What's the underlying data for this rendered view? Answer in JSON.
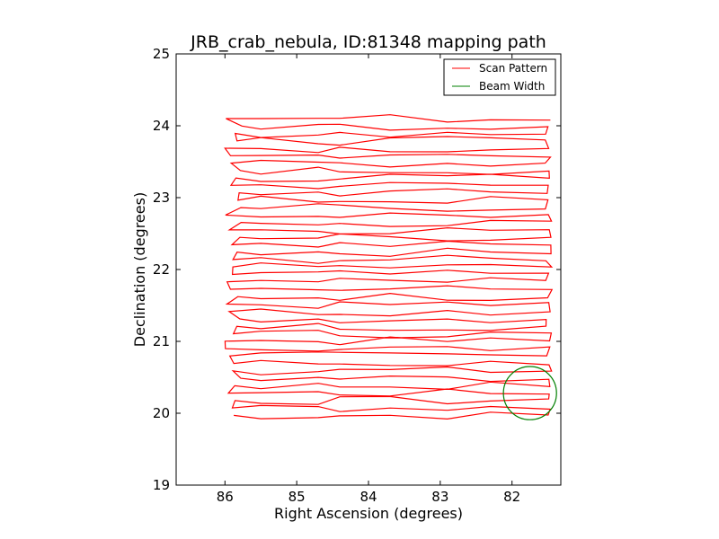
{
  "chart_data": {
    "type": "line",
    "title": "JRB_crab_nebula, ID:81348 mapping path",
    "xlabel": "Right Ascension (degrees)",
    "ylabel": "Declination (degrees)",
    "xlim": [
      86.68,
      81.32
    ],
    "ylim": [
      19,
      25
    ],
    "x_inverted": true,
    "xticks": [
      "86",
      "85",
      "84",
      "83",
      "82"
    ],
    "yticks": [
      "19",
      "20",
      "21",
      "22",
      "23",
      "24",
      "25"
    ],
    "grid": false,
    "legend_position": "top-right",
    "series": [
      {
        "name": "Scan Pattern",
        "color": "#ff0000",
        "type": "raster-scan",
        "dec_start": 19.97,
        "dec_end": 24.1,
        "n_rows": 41,
        "ra_left": 85.9,
        "ra_right": 81.5
      },
      {
        "name": "Beam Width",
        "color": "#008000",
        "type": "circle",
        "center_ra": 81.75,
        "center_dec": 20.28,
        "radius_deg": 0.37
      }
    ]
  }
}
